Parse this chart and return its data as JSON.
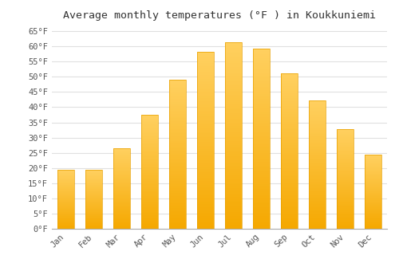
{
  "title": "Average monthly temperatures (°F ) in Koukkuniemi",
  "months": [
    "Jan",
    "Feb",
    "Mar",
    "Apr",
    "May",
    "Jun",
    "Jul",
    "Aug",
    "Sep",
    "Oct",
    "Nov",
    "Dec"
  ],
  "values": [
    19.4,
    19.4,
    26.4,
    37.4,
    49.1,
    58.1,
    61.3,
    59.2,
    51.1,
    42.1,
    32.9,
    24.3
  ],
  "bar_color_top": "#FFB700",
  "bar_color_bottom": "#FFA500",
  "bar_color_mid": "#FFC830",
  "ylim": [
    0,
    67
  ],
  "yticks": [
    0,
    5,
    10,
    15,
    20,
    25,
    30,
    35,
    40,
    45,
    50,
    55,
    60,
    65
  ],
  "ytick_labels": [
    "0°F",
    "5°F",
    "10°F",
    "15°F",
    "20°F",
    "25°F",
    "30°F",
    "35°F",
    "40°F",
    "45°F",
    "50°F",
    "55°F",
    "60°F",
    "65°F"
  ],
  "grid_color": "#e0e0e0",
  "background_color": "#ffffff",
  "title_fontsize": 9.5,
  "tick_fontsize": 7.5,
  "font_family": "monospace",
  "bar_width": 0.6
}
